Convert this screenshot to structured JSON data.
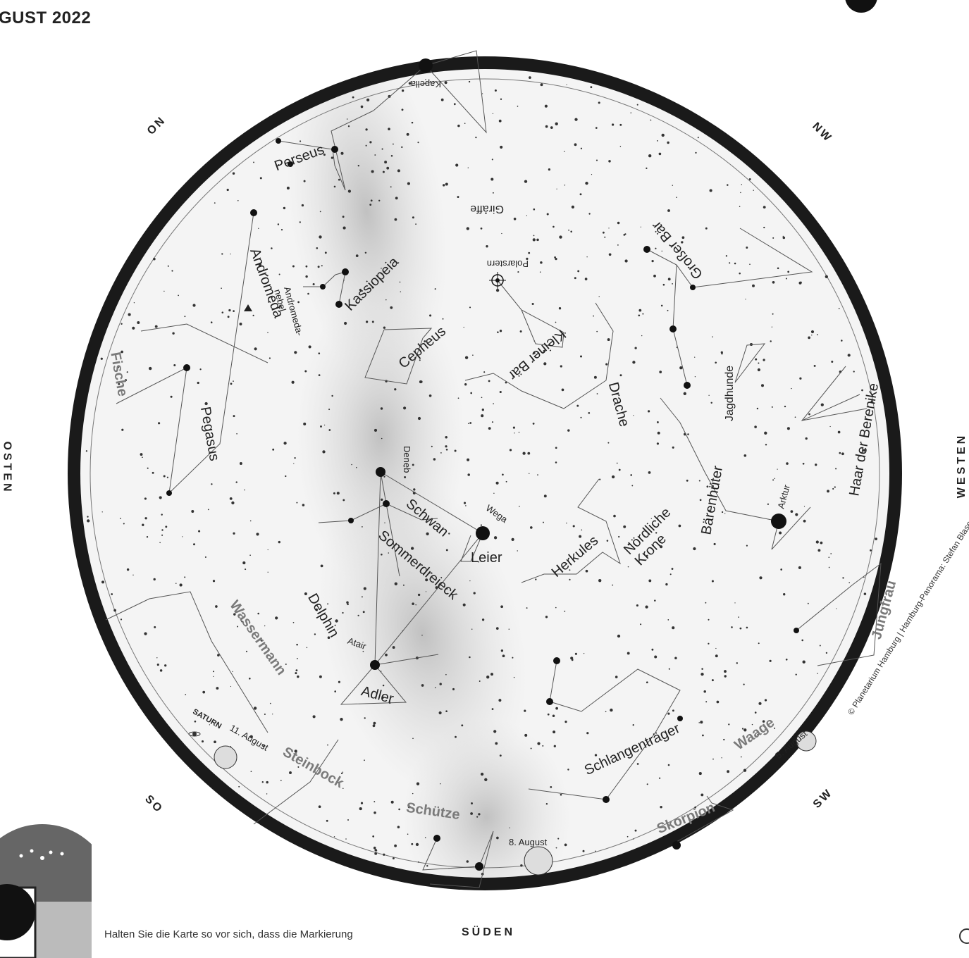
{
  "header": {
    "title": "GUST 2022"
  },
  "directions": {
    "osten": "OSTEN",
    "westen": "WESTEN",
    "sueden": "SÜDEN",
    "on": "ON",
    "nw": "NW",
    "so": "SO",
    "sw": "SW"
  },
  "constellations": {
    "kapella": "Kapella",
    "perseus": "Perseus",
    "giraffe": "Giraffe",
    "polarstern": "Polarstern",
    "grosser_baer": "Großer Bär",
    "andromeda": "Andromeda",
    "andromeda_nebel": "Andromeda-\nnebel",
    "kassiopeia": "Kassiopeia",
    "cepheus": "Cepheus",
    "kleiner_baer": "Kleiner Bär",
    "drache": "Drache",
    "jagdhunde": "Jagdhunde",
    "haar_der_berenike": "Haar der Berenike",
    "fische": "Fische",
    "pegasus": "Pegasus",
    "deneb": "Deneb",
    "schwan": "Schwan",
    "wega": "Wega",
    "leier": "Leier",
    "herkules": "Herkules",
    "noerdliche_krone": "Nördliche\nKrone",
    "baerenhueter": "Bärenhüter",
    "arktur": "Arktur",
    "sommerdreieck": "Sommerdreieck",
    "delphin": "Delphin",
    "wassermann": "Wassermann",
    "atair": "Atair",
    "adler": "Adler",
    "jungfrau": "Jungfrau",
    "schlangentraeger": "Schlangenträger",
    "waage": "Waage",
    "steinbock": "Steinbock",
    "schuetze": "Schütze",
    "skorpion": "Skorpion"
  },
  "events": {
    "saturn": "SATURN",
    "moon_11": "11. August",
    "moon_8": "8. August",
    "moon_5": "5. August"
  },
  "footer": {
    "hint": "Halten Sie die Karte so vor sich, dass die Markierung",
    "credit": "© Planetarium Hamburg | Hamburg-Panorama: Stefan Blaser"
  },
  "colors": {
    "sky": "#f4f4f4",
    "horizon": "#1a1a1a",
    "milky_way": "#bdbdbd",
    "zodiac_text": "#7a7a7a"
  }
}
